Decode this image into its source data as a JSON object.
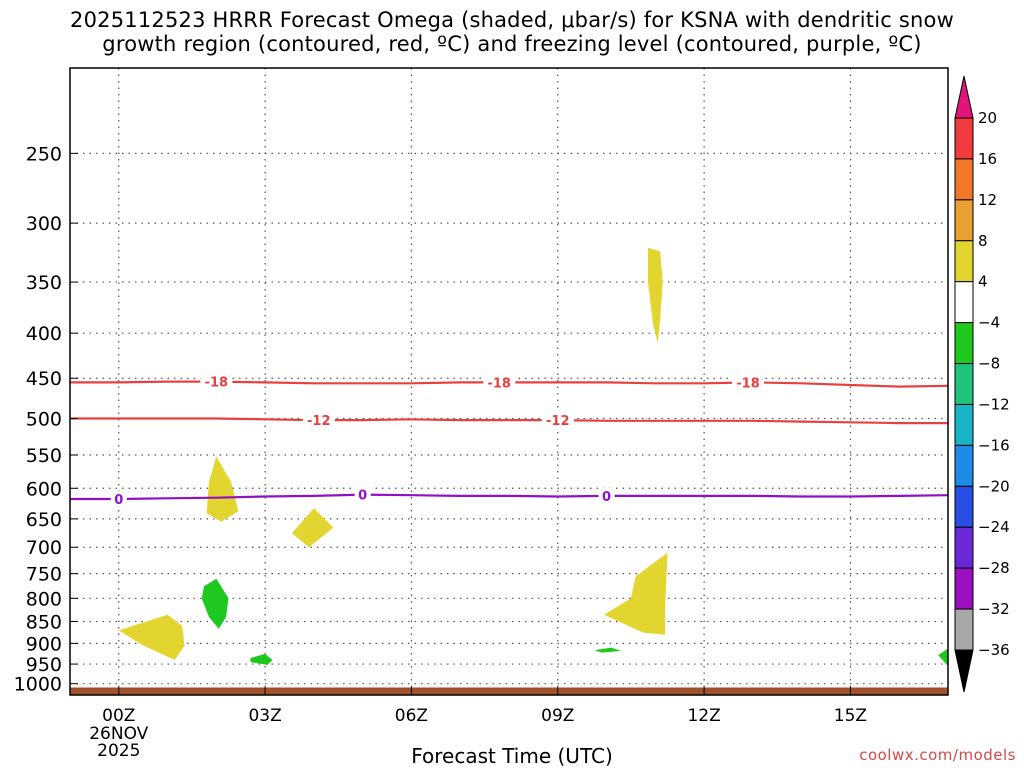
{
  "chart_data": {
    "type": "heatmap",
    "title_line1": "2025112523 HRRR Forecast Omega (shaded, μbar/s) for KSNA with dendritic snow",
    "title_line2": "growth region (contoured, red, ºC) and freezing level (contoured, purple, ºC)",
    "xlabel": "Forecast Time (UTC)",
    "credit": "coolwx.com/models",
    "x_range_hours": [
      -1,
      17
    ],
    "x_ticks": [
      {
        "hour": 0,
        "label": "00Z",
        "sub1": "26NOV",
        "sub2": "2025"
      },
      {
        "hour": 3,
        "label": "03Z"
      },
      {
        "hour": 6,
        "label": "06Z"
      },
      {
        "hour": 9,
        "label": "09Z"
      },
      {
        "hour": 12,
        "label": "12Z"
      },
      {
        "hour": 15,
        "label": "15Z"
      }
    ],
    "y_range_hpa": [
      1030,
      200
    ],
    "y_ticks": [
      250,
      300,
      350,
      400,
      450,
      500,
      550,
      600,
      650,
      700,
      750,
      800,
      850,
      900,
      950,
      1000
    ],
    "colorbar": {
      "labels": [
        "20",
        "16",
        "12",
        "8",
        "4",
        "−4",
        "−8",
        "−12",
        "−16",
        "−20",
        "−24",
        "−28",
        "−32",
        "−36"
      ],
      "bands": [
        {
          "lo": 16,
          "hi": 20,
          "color": "#f03c3c"
        },
        {
          "lo": 12,
          "hi": 16,
          "color": "#f07828"
        },
        {
          "lo": 8,
          "hi": 12,
          "color": "#e8a030"
        },
        {
          "lo": 4,
          "hi": 8,
          "color": "#e3d530"
        },
        {
          "lo": -4,
          "hi": 4,
          "color": "#ffffff"
        },
        {
          "lo": -8,
          "hi": -4,
          "color": "#1ec81e"
        },
        {
          "lo": -12,
          "hi": -8,
          "color": "#1ec47c"
        },
        {
          "lo": -16,
          "hi": -12,
          "color": "#18b4c8"
        },
        {
          "lo": -20,
          "hi": -16,
          "color": "#1e8ce6"
        },
        {
          "lo": -24,
          "hi": -20,
          "color": "#2850e6"
        },
        {
          "lo": -28,
          "hi": -24,
          "color": "#6a28d8"
        },
        {
          "lo": -32,
          "hi": -28,
          "color": "#9c10c0"
        },
        {
          "lo": -36,
          "hi": -32,
          "color": "#a8a8a8"
        }
      ],
      "top_arrow_color": "#e0147a",
      "bottom_arrow_color": "#000000"
    },
    "contours": [
      {
        "label": "-18",
        "color": "#e84040",
        "points": [
          [
            -1,
            455
          ],
          [
            0,
            455
          ],
          [
            1,
            454
          ],
          [
            2,
            454
          ],
          [
            3,
            455
          ],
          [
            4,
            456
          ],
          [
            5,
            456
          ],
          [
            6,
            456
          ],
          [
            7,
            455
          ],
          [
            8,
            455
          ],
          [
            9,
            455
          ],
          [
            10,
            455
          ],
          [
            11,
            456
          ],
          [
            12,
            456
          ],
          [
            13,
            455
          ],
          [
            14,
            456
          ],
          [
            15,
            458
          ],
          [
            16,
            460
          ],
          [
            17,
            459
          ]
        ],
        "label_hours": [
          2,
          7.8,
          12.9
        ]
      },
      {
        "label": "-12",
        "color": "#e84040",
        "points": [
          [
            -1,
            500
          ],
          [
            0,
            500
          ],
          [
            1,
            500
          ],
          [
            2,
            500
          ],
          [
            3,
            501
          ],
          [
            4,
            502
          ],
          [
            5,
            502
          ],
          [
            6,
            501
          ],
          [
            7,
            502
          ],
          [
            8,
            502
          ],
          [
            9,
            502
          ],
          [
            10,
            503
          ],
          [
            11,
            503
          ],
          [
            12,
            503
          ],
          [
            13,
            503
          ],
          [
            14,
            504
          ],
          [
            15,
            505
          ],
          [
            16,
            506
          ],
          [
            17,
            506
          ]
        ],
        "label_hours": [
          4.1,
          9
        ],
        "line_color": "#e84040"
      },
      {
        "label": "0",
        "color": "#9010c8",
        "points": [
          [
            -1,
            617
          ],
          [
            0,
            617
          ],
          [
            1,
            616
          ],
          [
            2,
            615
          ],
          [
            3,
            613
          ],
          [
            4,
            612
          ],
          [
            5,
            610
          ],
          [
            6,
            611
          ],
          [
            7,
            612
          ],
          [
            8,
            612
          ],
          [
            9,
            613
          ],
          [
            10,
            612
          ],
          [
            11,
            612
          ],
          [
            12,
            612
          ],
          [
            13,
            612
          ],
          [
            14,
            613
          ],
          [
            15,
            613
          ],
          [
            16,
            612
          ],
          [
            17,
            611
          ]
        ],
        "label_hours": [
          0,
          5,
          10
        ]
      }
    ],
    "omega_regions": [
      {
        "value": "4 to 8",
        "color": "#e3d530",
        "points": [
          [
            10.85,
            320
          ],
          [
            11.1,
            323
          ],
          [
            11.15,
            350
          ],
          [
            11.1,
            385
          ],
          [
            11.05,
            410
          ],
          [
            10.95,
            390
          ],
          [
            10.85,
            350
          ]
        ]
      },
      {
        "value": "4 to 8",
        "color": "#e3d530",
        "points": [
          [
            2,
            552
          ],
          [
            2.3,
            590
          ],
          [
            2.45,
            637
          ],
          [
            2.1,
            655
          ],
          [
            1.8,
            640
          ],
          [
            1.85,
            590
          ]
        ]
      },
      {
        "value": "4 to 8",
        "color": "#e3d530",
        "points": [
          [
            3.55,
            675
          ],
          [
            4,
            632
          ],
          [
            4.4,
            665
          ],
          [
            3.9,
            700
          ]
        ]
      },
      {
        "value": "4 to 8",
        "color": "#e3d530",
        "points": [
          [
            10.6,
            755
          ],
          [
            11.25,
            710
          ],
          [
            11.2,
            820
          ],
          [
            11.2,
            880
          ],
          [
            10.75,
            875
          ],
          [
            9.95,
            835
          ],
          [
            10.5,
            800
          ]
        ]
      },
      {
        "value": "4 to 8",
        "color": "#e3d530",
        "points": [
          [
            0,
            870
          ],
          [
            1,
            835
          ],
          [
            1.3,
            860
          ],
          [
            1.35,
            905
          ],
          [
            1.15,
            940
          ],
          [
            0.5,
            905
          ]
        ]
      },
      {
        "value": "-8 to -4",
        "color": "#1ec81e",
        "points": [
          [
            1.75,
            775
          ],
          [
            2,
            760
          ],
          [
            2.25,
            800
          ],
          [
            2.2,
            840
          ],
          [
            2.05,
            866
          ],
          [
            1.85,
            840
          ],
          [
            1.7,
            800
          ]
        ]
      },
      {
        "value": "-8 to -4",
        "color": "#1ec81e",
        "points": [
          [
            2.7,
            935
          ],
          [
            3,
            925
          ],
          [
            3.15,
            940
          ],
          [
            3.05,
            952
          ],
          [
            2.7,
            945
          ]
        ]
      },
      {
        "value": "-8 to -4",
        "color": "#1ec81e",
        "points": [
          [
            9.75,
            916
          ],
          [
            10.1,
            910
          ],
          [
            10.3,
            918
          ],
          [
            9.9,
            922
          ]
        ]
      },
      {
        "value": "-8 to -4",
        "color": "#1ec81e",
        "points": [
          [
            16.8,
            928
          ],
          [
            17,
            912
          ],
          [
            17,
            955
          ]
        ]
      }
    ],
    "ground_level_hpa": 1010,
    "ground_color": "#a0522d"
  }
}
